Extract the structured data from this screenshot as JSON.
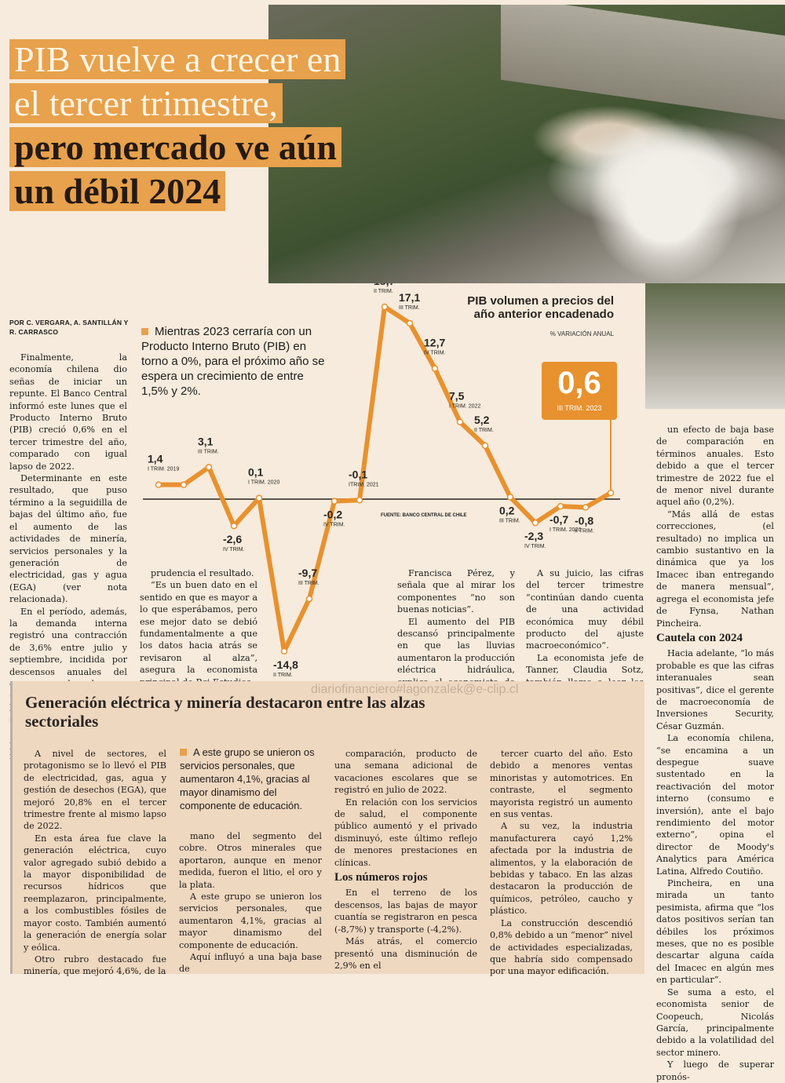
{
  "headline": {
    "line_a": "PIB vuelve a crecer en el tercer trimestre,",
    "line_b": "pero mercado ve aún un débil 2024"
  },
  "byline": "POR C. VERGARA, A. SANTILLÁN Y R. CARRASCO",
  "lead": "Mientras 2023 cerraría con un Producto Interno Bruto (PIB) en torno a 0%, para el próximo año se espera un crecimiento de entre 1,5% y 2%.",
  "col1": [
    "Finalmente, la economía chilena dio señas de iniciar un repunte. El Banco Central informó este lunes que el Producto Interno Bruto (PIB) creció 0,6% en el tercer trimestre del año, comparado con igual lapso de 2022.",
    "Determinante en este resultado, que puso término a la seguidilla de bajas del último año, fue el aumento de las actividades de minería, servicios personales y la generación de electricidad, gas y agua (EGA) (ver nota relacionada).",
    "En el período, además, la demanda interna registró una contracción de 3,6% entre julio y septiembre, incidida por descensos anuales del consumo de hogares (-3,6%) y de la formación bruta de capital fijo (-4,1%).",
    "Pese a superar lo previsto, desde el mercado miraron con"
  ],
  "col2": [
    "prudencia el resultado.",
    "“Es un buen dato en el sentido en que es mayor a lo que esperábamos, pero ese mejor dato se debió fundamentalmente a que los datos hacia atrás se revisaron al alza”, asegura la economista principal de Bci Estudios,"
  ],
  "col3": [
    "Francisca Pérez, y señala que al mirar los componentes “no son buenas noticias”.",
    "El aumento del PIB descansó principalmente en que las lluvias aumentaron la producción eléctrica hidráulica, explica el economista de Econsult, Arturo Claro."
  ],
  "col4": [
    "A su juicio, las cifras del tercer trimestre “continúan dando cuenta de una actividad económica muy débil producto del ajuste macroeconómico”.",
    "La economista jefe de Tanner, Claudia Sotz, también llama a leer los números “con cautela”, ya que existe"
  ],
  "col5": [
    "un efecto de baja base de comparación en términos anuales. Esto debido a que el tercer trimestre de 2022 fue el de menor nivel durante aquel año (0,2%).",
    "“Más allá de estas correcciones, (el resultado) no implica un cambio sustantivo en la dinámica que ya los Imacec iban entregando de manera mensual”, agrega el economista jefe de Fynsa, Nathan Pincheira."
  ],
  "col5_subhead": "Cautela con 2024",
  "col5b": [
    "Hacia adelante, “lo más probable es que las cifras interanuales sean positivas”, dice el gerente de macroeconomía de Inversiones Security, César Guzmán.",
    "La economía chilena, “se encamina a un despegue suave sustentado en la reactivación del motor interno (consumo e inversión), ante el bajo rendimiento del motor externo”, opina el director de Moody's Analytics para América Latina, Alfredo Coutiño.",
    "Pincheira, en una mirada un tanto pesimista, afirma que “los datos positivos serían tan débiles los próximos meses, que no es posible descartar alguna caída del Imacec en algún mes en particular”.",
    "Se suma a esto, el economista senior de Coopeuch, Nicolás García, principalmente debido a la volatilidad del sector minero.",
    "Y luego de superar pronós-"
  ],
  "box": {
    "title": "Generación eléctrica y minería destacaron entre las alzas sectoriales",
    "watermark": "diariofinanciero#lagonzalek@e-clip.cl",
    "lead": "A este grupo se unieron os servicios personales, que aumentaron 4,1%, gracias al mayor dinamismo del componente de educación.",
    "c1": [
      "A nivel de sectores, el protagonismo se lo llevó el PIB de electricidad, gas, agua y gestión de desechos (EGA), que mejoró 20,8% en el tercer trimestre frente al mismo lapso de 2022.",
      "En esta área fue clave la generación eléctrica, cuyo valor agregado subió debido a la mayor disponibilidad de recursos hídricos que reemplazaron, principalmente, a los combustibles fósiles de mayor costo. También aumentó la generación de energía solar y eólica.",
      "Otro rubro destacado fue minería, que mejoró 4,6%, de la"
    ],
    "c2": [
      "mano del segmento del cobre. Otros minerales que aportaron, aunque en menor medida, fueron el litio, el oro y la plata.",
      "A este grupo se unieron los servicios personales, que aumentaron 4,1%, gracias al mayor dinamismo del componente de educación.",
      "Aquí influyó a una baja base de"
    ],
    "c3": [
      "comparación, producto de una semana adicional de vacaciones escolares que se registró en julio de 2022.",
      "En relación con los servicios de salud, el componente público aumentó y el privado disminuyó, este último reflejo de menores prestaciones en clínicas."
    ],
    "c3_subhead": "Los números rojos",
    "c3b": [
      "En el terreno de los descensos, las bajas de mayor cuantía se registraron en pesca (-8,7%) y transporte (-4,2%).",
      "Más atrás, el comercio presentó una disminución de 2,9% en el"
    ],
    "c4": [
      "tercer cuarto del año. Esto debido a menores ventas minoristas y automotrices. En contraste, el segmento mayorista registró un aumento en sus ventas.",
      "A su vez, la industria manufacturera cayó 1,2% afectada por la industria de alimentos, y la elaboración de bebidas y tabaco. En las alzas destacaron la producción de químicos, petróleo, caucho y plástico.",
      "La construcción descendió 0,8% debido a un “menor” nivel de actividades especializadas, que habría sido compensado por una mayor edificación."
    ]
  },
  "chart_data": {
    "type": "line",
    "title": "PIB volumen a precios del año anterior encadenado",
    "subtitle": "% VARIACIÓN ANUAL",
    "source": "FUENTE: BANCO CENTRAL DE CHILE",
    "highlight": {
      "value": "0,6",
      "label": "III TRIM. 2023"
    },
    "line_color": "#e8912f",
    "x": [
      "I 2019",
      "II 2019",
      "III 2019",
      "IV 2019",
      "I 2020",
      "II 2020",
      "III 2020",
      "IV 2020",
      "I 2021",
      "II 2021",
      "III 2021",
      "IV 2021",
      "I 2022",
      "II 2022",
      "III 2022",
      "IV 2022",
      "I 2023",
      "II 2023",
      "III 2023"
    ],
    "values": [
      1.4,
      1.4,
      3.1,
      -2.6,
      0.1,
      -14.8,
      -9.7,
      -0.2,
      -0.1,
      18.7,
      17.1,
      12.7,
      7.5,
      5.2,
      0.2,
      -2.3,
      -0.7,
      -0.8,
      0.6
    ],
    "point_labels": [
      {
        "i": 0,
        "value": "1,4",
        "label": "I TRIM. 2019"
      },
      {
        "i": 2,
        "value": "3,1",
        "label": "III TRIM."
      },
      {
        "i": 3,
        "value": "-2,6",
        "label": "IV TRIM."
      },
      {
        "i": 4,
        "value": "0,1",
        "label": "I TRIM. 2020"
      },
      {
        "i": 5,
        "value": "-14,8",
        "label": "II TRIM."
      },
      {
        "i": 6,
        "value": "-9,7",
        "label": "III TRIM."
      },
      {
        "i": 7,
        "value": "-0,2",
        "label": "IV TRIM."
      },
      {
        "i": 8,
        "value": "-0,1",
        "label": "ITRIM. 2021"
      },
      {
        "i": 9,
        "value": "18,7",
        "label": "II TRIM."
      },
      {
        "i": 10,
        "value": "17,1",
        "label": "III TRIM."
      },
      {
        "i": 11,
        "value": "12,7",
        "label": "IV TRIM."
      },
      {
        "i": 12,
        "value": "7,5",
        "label": "I TRIM. 2022"
      },
      {
        "i": 13,
        "value": "5,2",
        "label": "II TRIM."
      },
      {
        "i": 14,
        "value": "0,2",
        "label": "III TRIM."
      },
      {
        "i": 15,
        "value": "-2,3",
        "label": "IV TRIM."
      },
      {
        "i": 16,
        "value": "-0,7",
        "label": "I TRIM. 2020"
      },
      {
        "i": 17,
        "value": "-0,8",
        "label": "II TRIM."
      }
    ]
  }
}
